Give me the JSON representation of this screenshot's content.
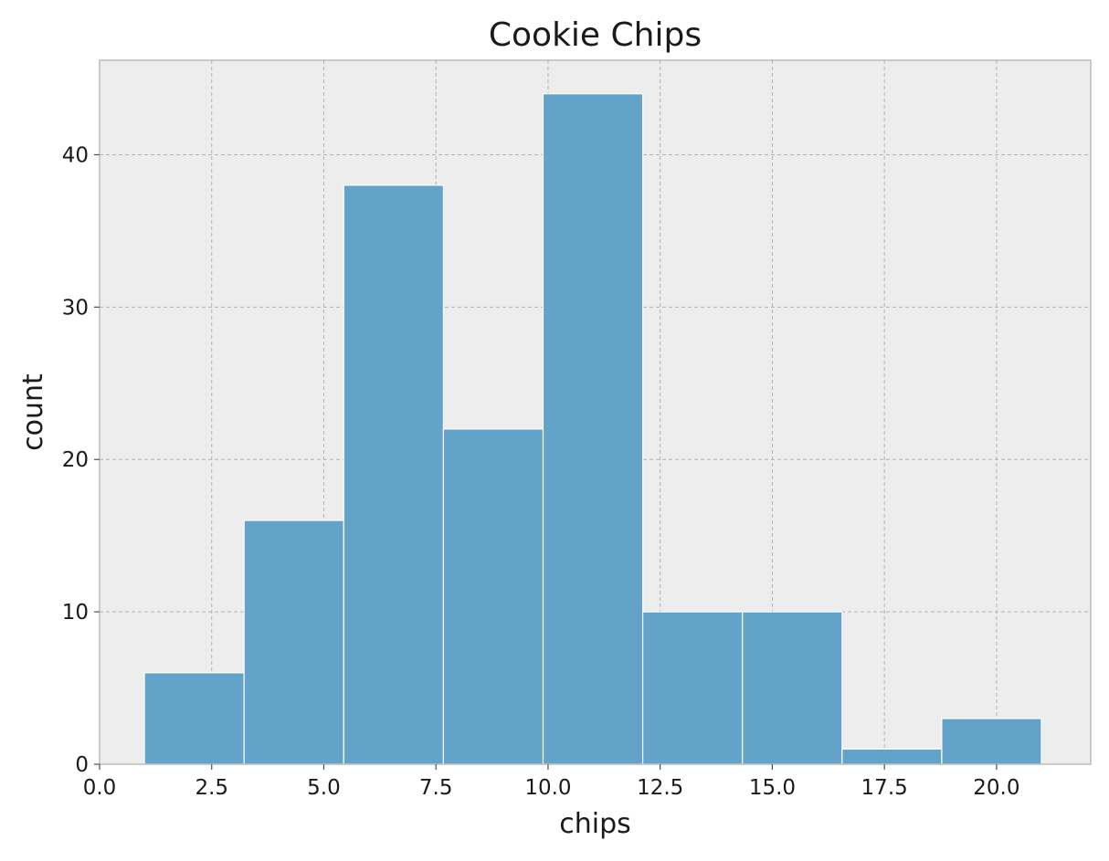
{
  "chart_data": {
    "type": "bar",
    "subtype": "histogram",
    "title": "Cookie Chips",
    "xlabel": "chips",
    "ylabel": "count",
    "xlim": [
      0,
      22.1
    ],
    "ylim": [
      0,
      46.2
    ],
    "grid": true,
    "bin_edges": [
      1.0,
      3.222,
      5.444,
      7.667,
      9.889,
      12.111,
      14.333,
      16.556,
      18.778,
      21.0
    ],
    "values": [
      6,
      16,
      38,
      22,
      44,
      10,
      10,
      1,
      3
    ],
    "x_ticks": [
      0.0,
      2.5,
      5.0,
      7.5,
      10.0,
      12.5,
      15.0,
      17.5,
      20.0
    ],
    "x_tick_labels": [
      "0.0",
      "2.5",
      "5.0",
      "7.5",
      "10.0",
      "12.5",
      "15.0",
      "17.5",
      "20.0"
    ],
    "y_ticks": [
      0,
      10,
      20,
      30,
      40
    ],
    "y_tick_labels": [
      "0",
      "10",
      "20",
      "30",
      "40"
    ],
    "colors": {
      "bar": "#63a2c9",
      "plot_background": "#ededed",
      "frame": "#bcbcbc"
    }
  }
}
